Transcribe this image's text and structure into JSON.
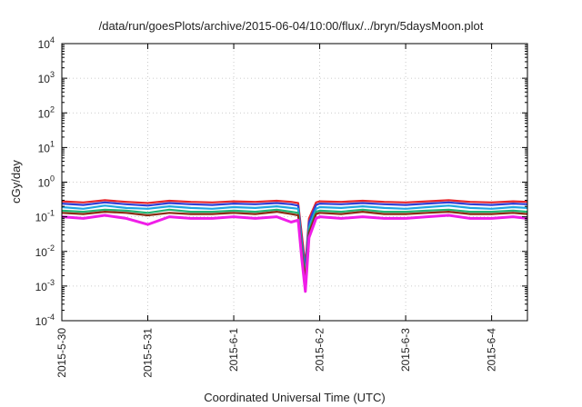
{
  "chart_data": {
    "type": "line",
    "title": "/data/run/goesPlots/archive/2015-06-04/10:00/flux/../bryn/5daysMoon.plot",
    "xlabel": "Coordinated Universal Time (UTC)",
    "ylabel": "cGy/day",
    "yscale": "log",
    "ylim": [
      0.0001,
      10000
    ],
    "xlim": [
      "2015-05-30 00:00",
      "2015-06-04 10:00"
    ],
    "grid": true,
    "x_ticks": [
      "2015-5-30",
      "2015-5-31",
      "2015-6-1",
      "2015-6-2",
      "2015-6-3",
      "2015-6-4"
    ],
    "y_ticks": [
      {
        "base": "10",
        "exp": "-4"
      },
      {
        "base": "10",
        "exp": "-3"
      },
      {
        "base": "10",
        "exp": "-2"
      },
      {
        "base": "10",
        "exp": "-1"
      },
      {
        "base": "10",
        "exp": "0"
      },
      {
        "base": "10",
        "exp": "1"
      },
      {
        "base": "10",
        "exp": "2"
      },
      {
        "base": "10",
        "exp": "3"
      },
      {
        "base": "10",
        "exp": "4"
      }
    ],
    "x": [
      "2015-05-30 00:00",
      "2015-05-30 06:00",
      "2015-05-30 12:00",
      "2015-05-30 18:00",
      "2015-05-31 00:00",
      "2015-05-31 06:00",
      "2015-05-31 12:00",
      "2015-05-31 18:00",
      "2015-06-01 00:00",
      "2015-06-01 06:00",
      "2015-06-01 12:00",
      "2015-06-01 16:00",
      "2015-06-01 18:00",
      "2015-06-01 19:00",
      "2015-06-01 20:00",
      "2015-06-01 21:00",
      "2015-06-01 23:00",
      "2015-06-02 00:00",
      "2015-06-02 06:00",
      "2015-06-02 12:00",
      "2015-06-02 18:00",
      "2015-06-03 00:00",
      "2015-06-03 06:00",
      "2015-06-03 12:00",
      "2015-06-03 18:00",
      "2015-06-04 00:00",
      "2015-06-04 06:00",
      "2015-06-04 10:00"
    ],
    "series": [
      {
        "color": "#e8262b",
        "values": [
          0.28,
          0.26,
          0.3,
          0.27,
          0.25,
          0.29,
          0.27,
          0.26,
          0.28,
          0.27,
          0.29,
          0.27,
          0.25,
          0.03,
          0.004,
          0.09,
          0.26,
          0.28,
          0.27,
          0.29,
          0.27,
          0.26,
          0.28,
          0.3,
          0.27,
          0.26,
          0.28,
          0.27
        ]
      },
      {
        "color": "#2f3fd6",
        "values": [
          0.24,
          0.22,
          0.26,
          0.23,
          0.21,
          0.25,
          0.23,
          0.22,
          0.24,
          0.23,
          0.25,
          0.23,
          0.21,
          0.02,
          0.003,
          0.07,
          0.22,
          0.24,
          0.23,
          0.25,
          0.23,
          0.22,
          0.24,
          0.26,
          0.23,
          0.22,
          0.24,
          0.23
        ]
      },
      {
        "color": "#1fa6e0",
        "values": [
          0.19,
          0.17,
          0.21,
          0.18,
          0.17,
          0.2,
          0.18,
          0.17,
          0.19,
          0.18,
          0.2,
          0.18,
          0.17,
          0.015,
          0.002,
          0.05,
          0.17,
          0.19,
          0.18,
          0.2,
          0.18,
          0.17,
          0.19,
          0.21,
          0.18,
          0.17,
          0.19,
          0.18
        ]
      },
      {
        "color": "#22b573",
        "values": [
          0.15,
          0.14,
          0.16,
          0.15,
          0.13,
          0.16,
          0.14,
          0.14,
          0.15,
          0.14,
          0.16,
          0.14,
          0.13,
          0.012,
          0.0018,
          0.04,
          0.14,
          0.15,
          0.14,
          0.16,
          0.14,
          0.14,
          0.15,
          0.16,
          0.14,
          0.14,
          0.15,
          0.14
        ]
      },
      {
        "color": "#8b2c12",
        "values": [
          0.13,
          0.12,
          0.14,
          0.13,
          0.11,
          0.13,
          0.12,
          0.12,
          0.13,
          0.12,
          0.14,
          0.12,
          0.11,
          0.01,
          0.0015,
          0.035,
          0.12,
          0.13,
          0.12,
          0.14,
          0.12,
          0.12,
          0.13,
          0.14,
          0.12,
          0.12,
          0.13,
          0.12
        ]
      },
      {
        "color": "#f01ee8",
        "values": [
          0.1,
          0.09,
          0.11,
          0.09,
          0.06,
          0.1,
          0.09,
          0.09,
          0.1,
          0.09,
          0.1,
          0.07,
          0.08,
          0.006,
          0.0007,
          0.025,
          0.09,
          0.1,
          0.09,
          0.1,
          0.09,
          0.09,
          0.1,
          0.11,
          0.09,
          0.09,
          0.1,
          0.09
        ]
      }
    ]
  }
}
